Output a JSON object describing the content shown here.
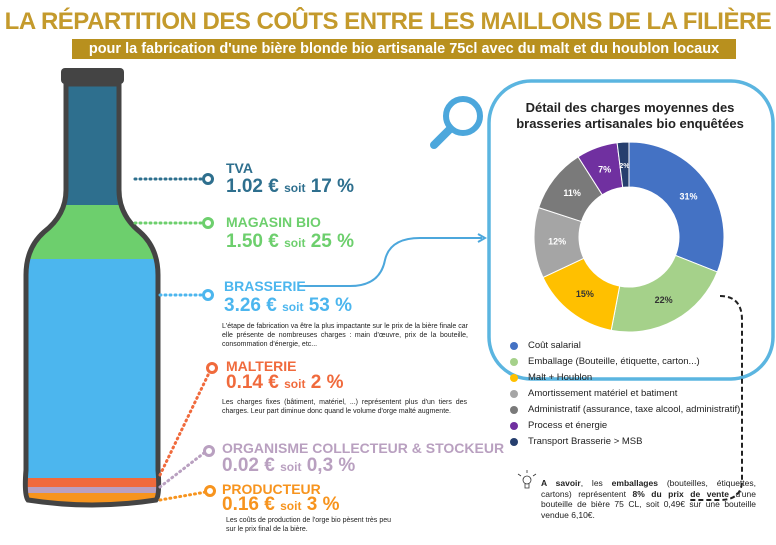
{
  "header": {
    "title": "LA RÉPARTITION DES COÛTS ENTRE LES MAILLONS DE LA FILIÈRE",
    "subtitle": "pour la fabrication d'une bière blonde bio artisanale 75cl avec du malt et du houblon locaux"
  },
  "soit": "soit",
  "links": [
    {
      "label": "TVA",
      "price": "1.02 €",
      "percent": "17 %",
      "color": "#2e6f8e"
    },
    {
      "label": "MAGASIN BIO",
      "price": "1.50 €",
      "percent": "25 %",
      "color": "#6dcf6d"
    },
    {
      "label": "BRASSERIE",
      "price": "3.26 €",
      "percent": "53 %",
      "color": "#4cb6ee",
      "note": "L'étape de fabrication va être la plus impactante sur le prix de la bière finale car elle présente de nombreuses charges : main d'œuvre, prix de la bouteille, consommation d'énergie, etc..."
    },
    {
      "label": "MALTERIE",
      "price": "0.14 €",
      "percent": "2 %",
      "color": "#f06a3c",
      "note": "Les charges fixes (bâtiment, matériel, ...) représentent plus d'un tiers des charges. Leur part diminue donc quand le volume d'orge malté augmente."
    },
    {
      "label": "ORGANISME COLLECTEUR & STOCKEUR",
      "price": "0.02 €",
      "percent": "0,3 %",
      "color": "#b9a0c0"
    },
    {
      "label": "PRODUCTEUR",
      "price": "0.16 €",
      "percent": "3 %",
      "color": "#f7941e",
      "note": "Les coûts de production de l'orge bio pèsent très peu sur le prix final de la bière."
    }
  ],
  "chart_data": {
    "type": "pie",
    "donut": true,
    "title": "Détail des charges moyennes des brasseries artisanales bio enquêtées",
    "categories": [
      "Coût salarial",
      "Emballage (Bouteille, étiquette, carton...)",
      "Malt + Houblon",
      "Amortissement matériel et batiment",
      "Administratif (assurance, taxe alcool, administratif)",
      "Process et énergie",
      "Transport Brasserie > MSB"
    ],
    "values": [
      31,
      22,
      15,
      12,
      11,
      7,
      2
    ],
    "labels": [
      "31%",
      "22%",
      "15%",
      "12%",
      "11%",
      "7%",
      "2%"
    ],
    "colors": [
      "#4472c4",
      "#a5d18a",
      "#ffc000",
      "#a5a5a5",
      "#7a7a7a",
      "#7030a0",
      "#263f6e"
    ],
    "legend": "bottom"
  },
  "tip": {
    "bold1": "A savoir",
    "t1": ", les ",
    "bold2": "emballages",
    "t2": " (bouteilles, étiquettes, cartons) représentent ",
    "bold3": "8% du prix de vente",
    "t3": " d'une bouteille de bière 75 CL, soit 0,49€ sur une bouteille vendue 6,10€."
  }
}
